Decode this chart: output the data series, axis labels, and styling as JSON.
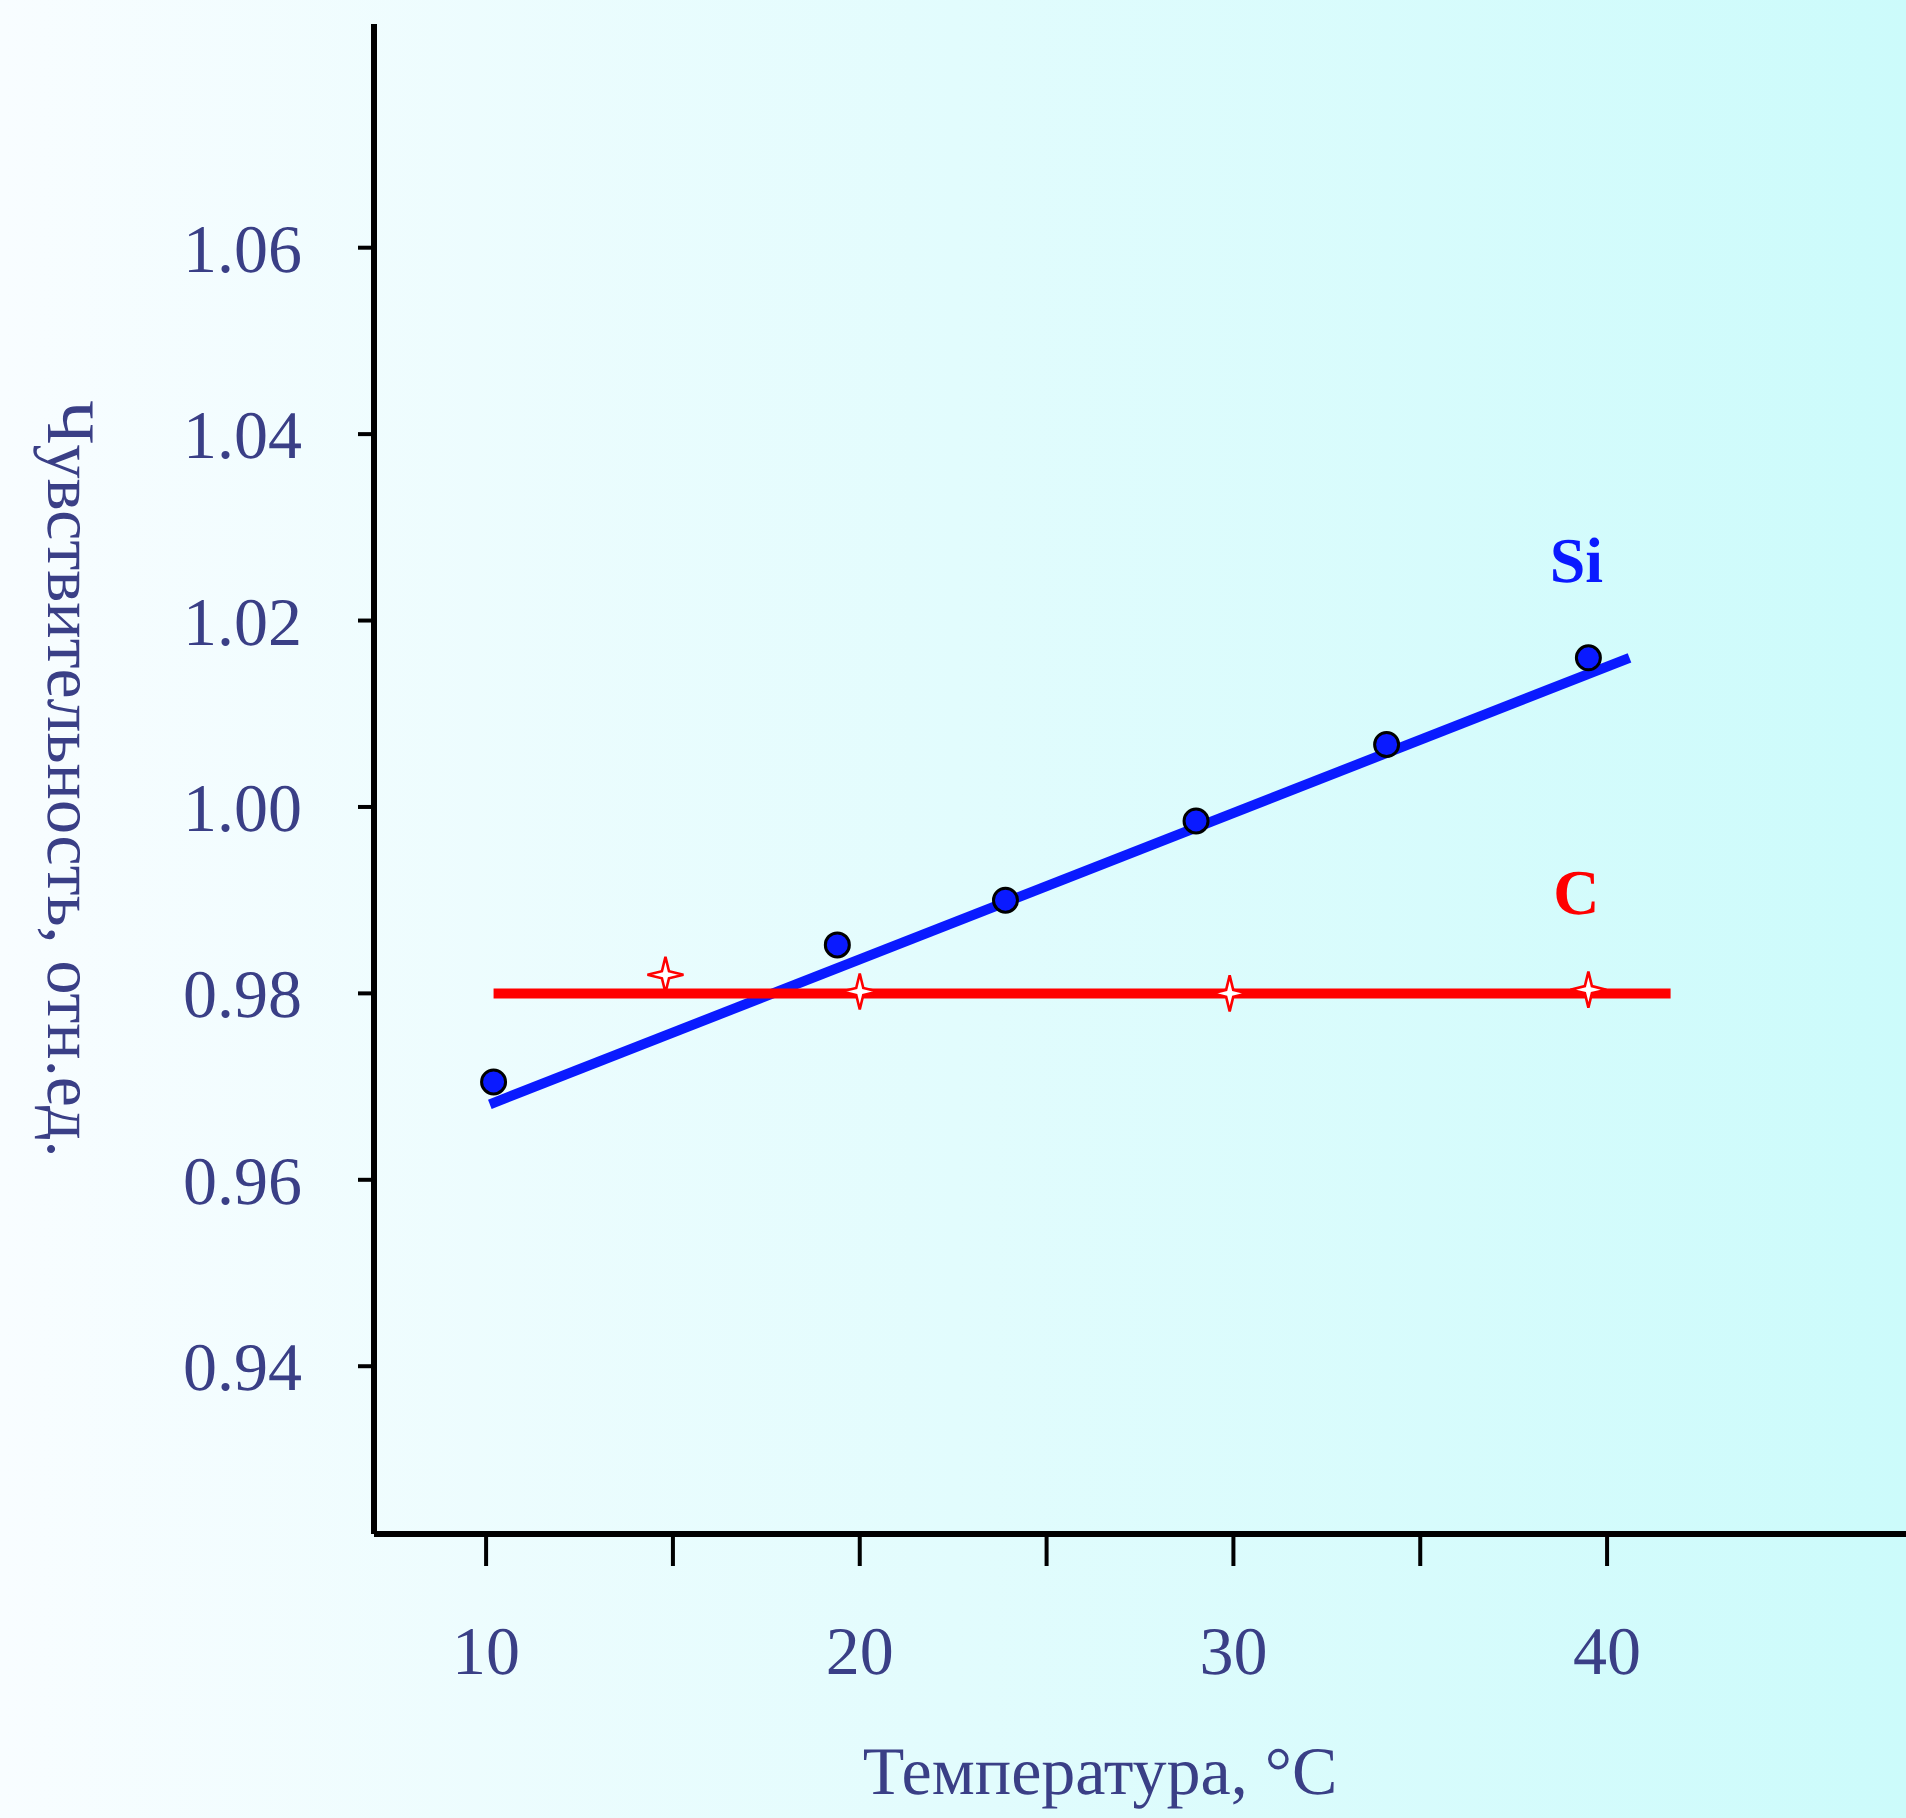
{
  "chart_data": {
    "type": "scatter",
    "xlabel": "Температура, °C",
    "ylabel": "Чувствительность, отн.ед.",
    "xlim": [
      7,
      48
    ],
    "ylim": [
      0.922,
      1.084
    ],
    "xticks": [
      10,
      {
        "value": 15,
        "label": null
      },
      20,
      {
        "value": 25,
        "label": null
      },
      30,
      {
        "value": 35,
        "label": null
      },
      40
    ],
    "yticks": [
      0.94,
      0.96,
      0.98,
      {
        "value": 1,
        "label": "1.00"
      },
      1.02,
      1.04,
      1.06
    ],
    "grid": false,
    "series": [
      {
        "type": "line",
        "color": "#0a1aff",
        "x": [
          10.1,
          40.6
        ],
        "values": [
          0.9681,
          1.016
        ],
        "marker": "none"
      },
      {
        "name": "Si",
        "color": "#0a1aff",
        "x": [
          10.2,
          19.4,
          23.9,
          29.0,
          34.1,
          39.5
        ],
        "values": [
          0.9705,
          0.9852,
          0.99,
          0.9985,
          1.0067,
          1.016
        ],
        "marker": "circle"
      },
      {
        "type": "line",
        "color": "#ff0000",
        "x": [
          10.2,
          41.7
        ],
        "values": [
          0.98,
          0.98
        ],
        "marker": "none"
      },
      {
        "name": "C",
        "color": "#ff0000",
        "x": [
          14.8,
          20.0,
          29.9,
          39.5
        ],
        "values": [
          0.982,
          0.9802,
          0.98,
          0.9804
        ],
        "marker": "star"
      }
    ]
  }
}
